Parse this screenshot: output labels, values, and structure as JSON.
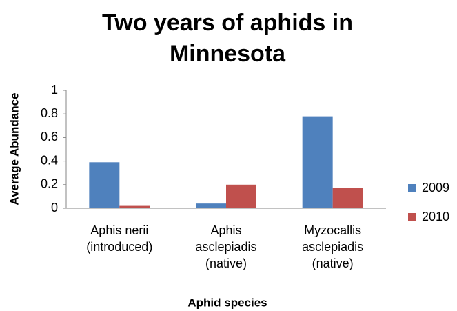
{
  "chart_data": {
    "type": "bar",
    "title": [
      "Two years of aphids in",
      "Minnesota"
    ],
    "x_label": "Aphid species",
    "y_label": "Average  Abundance",
    "categories": [
      [
        "Aphis nerii",
        "(introduced)"
      ],
      [
        "Aphis",
        "asclepiadis",
        "(native)"
      ],
      [
        "Myzocallis",
        "asclepiadis",
        "(native)"
      ]
    ],
    "series": [
      {
        "name": "2009",
        "color": "#4f81bd",
        "values": [
          0.39,
          0.04,
          0.78
        ]
      },
      {
        "name": "2010",
        "color": "#c0504d",
        "values": [
          0.02,
          0.2,
          0.17
        ]
      }
    ],
    "ylim": [
      0,
      1
    ],
    "yticks": [
      0,
      0.2,
      0.4,
      0.6,
      0.8,
      1
    ],
    "grid": false,
    "legend": "right"
  }
}
